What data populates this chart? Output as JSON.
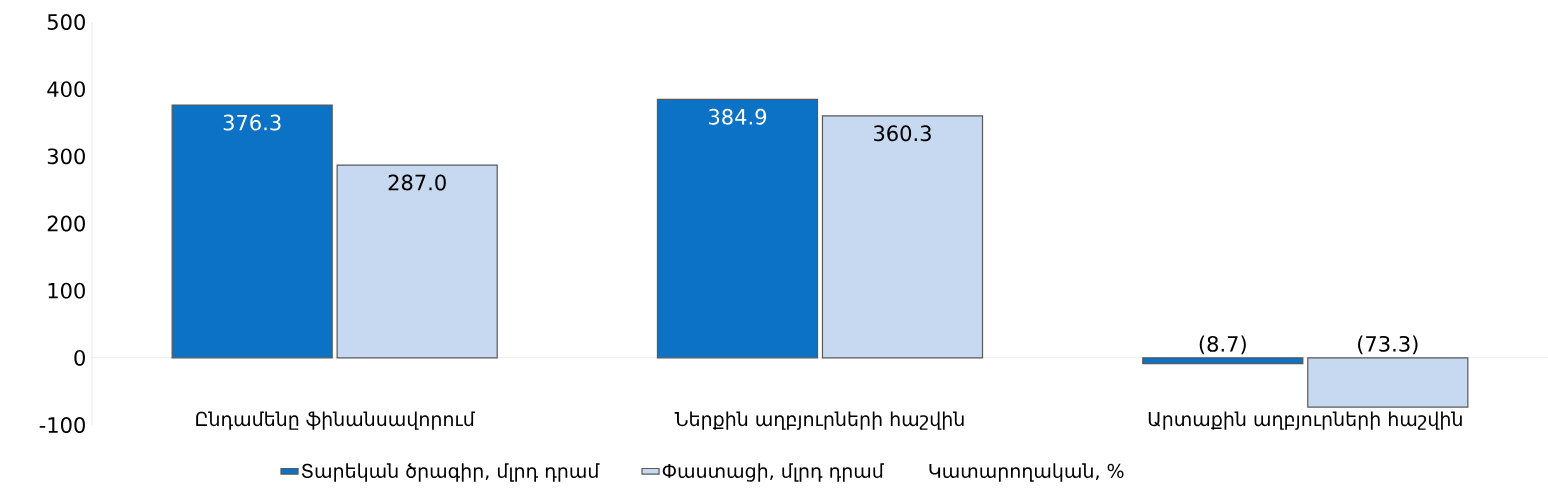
{
  "chart_data": {
    "type": "bar",
    "categories": [
      "Ընդամենը ֆինանսավորում",
      "Ներքին աղբյուրների հաշվին",
      "Արտաքին աղբյուրների հաշվին"
    ],
    "series": [
      {
        "name": "Տարեկան ծրագիր, մլրդ դրամ",
        "color": "#0b72c6",
        "values": [
          376.3,
          384.9,
          -8.7
        ],
        "value_labels": [
          "376.3",
          "384.9",
          "(8.7)"
        ]
      },
      {
        "name": "Փաստացի, մլրդ դրամ",
        "color": "#c6d9f0",
        "values": [
          287.0,
          360.3,
          -73.3
        ],
        "value_labels": [
          "287.0",
          "360.3",
          "(73.3)"
        ]
      },
      {
        "name": "Կատարողական, %",
        "values": [
          null,
          null,
          null
        ]
      }
    ],
    "ylim": [
      -100,
      500
    ],
    "yticks": [
      -100,
      0,
      100,
      200,
      300,
      400,
      500
    ],
    "legend": "bottom"
  }
}
